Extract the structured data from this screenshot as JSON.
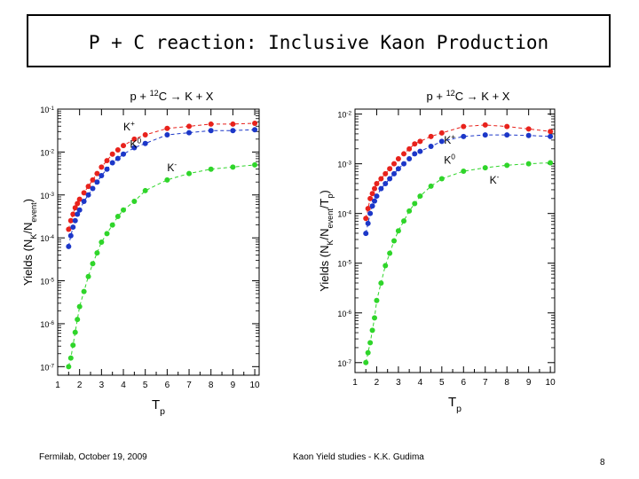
{
  "slide": {
    "title": "P + C reaction: Inclusive Kaon Production",
    "footer_left": "Fermilab, October 19, 2009",
    "footer_center": "Kaon Yield studies - K.K. Gudima",
    "page_number": "8"
  },
  "colors": {
    "kplus": "#e8221c",
    "kzero": "#1c37c8",
    "kminus": "#2fd52a",
    "axis": "#000000"
  },
  "chart_data": [
    {
      "type": "line",
      "title_parts": {
        "lead": "p + ",
        "iso": "12",
        "rest": "C → K + X"
      },
      "xlabel": {
        "main": "T",
        "sub": "p"
      },
      "ylabel": {
        "main": "Yields (N",
        "sub1": "K",
        "mid": "/N",
        "sub2": "event",
        "end": ")"
      },
      "xlim": [
        1,
        10.2
      ],
      "ylim_exp": [
        -7.2,
        -1
      ],
      "log_y": true,
      "x_ticks": [
        "1",
        "2",
        "3",
        "4",
        "5",
        "6",
        "7",
        "8",
        "9",
        "10"
      ],
      "y_ticks": [
        {
          "base": "10",
          "exp": "-1"
        },
        {
          "base": "10",
          "exp": "-2"
        },
        {
          "base": "10",
          "exp": "-3"
        },
        {
          "base": "10",
          "exp": "-4"
        },
        {
          "base": "10",
          "exp": "-5"
        },
        {
          "base": "10",
          "exp": "-6"
        },
        {
          "base": "10",
          "exp": "-7"
        }
      ],
      "series": [
        {
          "name": "K+",
          "label": {
            "main": "K",
            "sup": "+"
          },
          "color": "kplus",
          "x": [
            1.5,
            1.6,
            1.7,
            1.8,
            1.9,
            2.0,
            2.2,
            2.4,
            2.6,
            2.8,
            3.0,
            3.25,
            3.5,
            3.75,
            4.0,
            4.5,
            5.0,
            6.0,
            7.0,
            8.0,
            9.0,
            10.0
          ],
          "y": [
            -3.8,
            -3.6,
            -3.45,
            -3.3,
            -3.2,
            -3.1,
            -2.95,
            -2.8,
            -2.65,
            -2.5,
            -2.35,
            -2.2,
            -2.05,
            -1.95,
            -1.85,
            -1.7,
            -1.6,
            -1.45,
            -1.4,
            -1.35,
            -1.35,
            -1.33
          ]
        },
        {
          "name": "K0",
          "label": {
            "main": "K",
            "sup": "0"
          },
          "color": "kzero",
          "x": [
            1.5,
            1.6,
            1.7,
            1.8,
            1.9,
            2.0,
            2.2,
            2.4,
            2.6,
            2.8,
            3.0,
            3.25,
            3.5,
            3.75,
            4.0,
            4.5,
            5.0,
            6.0,
            7.0,
            8.0,
            9.0,
            10.0
          ],
          "y": [
            -4.2,
            -3.95,
            -3.75,
            -3.6,
            -3.45,
            -3.35,
            -3.15,
            -3.0,
            -2.85,
            -2.7,
            -2.55,
            -2.4,
            -2.25,
            -2.15,
            -2.05,
            -1.9,
            -1.8,
            -1.6,
            -1.55,
            -1.5,
            -1.5,
            -1.48
          ]
        },
        {
          "name": "K-",
          "label": {
            "main": "K",
            "sup": "-"
          },
          "color": "kminus",
          "x": [
            1.5,
            1.6,
            1.7,
            1.8,
            1.9,
            2.0,
            2.2,
            2.4,
            2.6,
            2.8,
            3.0,
            3.25,
            3.5,
            3.75,
            4.0,
            4.5,
            5.0,
            6.0,
            7.0,
            8.0,
            9.0,
            10.0
          ],
          "y": [
            -7.0,
            -6.8,
            -6.5,
            -6.2,
            -5.9,
            -5.6,
            -5.25,
            -4.9,
            -4.6,
            -4.35,
            -4.1,
            -3.9,
            -3.7,
            -3.5,
            -3.35,
            -3.15,
            -2.9,
            -2.65,
            -2.5,
            -2.4,
            -2.35,
            -2.3
          ]
        }
      ]
    },
    {
      "type": "line",
      "title_parts": {
        "lead": "p + ",
        "iso": "12",
        "rest": "C → K + X"
      },
      "xlabel": {
        "main": "T",
        "sub": "p"
      },
      "ylabel": {
        "main": "Yields (N",
        "sub1": "K",
        "mid": "/N",
        "sub2": "event",
        "end": "/T",
        "sub3": "p",
        "end2": ")"
      },
      "xlim": [
        1,
        10.2
      ],
      "ylim_exp": [
        -7.2,
        -1.9
      ],
      "log_y": true,
      "x_ticks": [
        "1",
        "2",
        "3",
        "4",
        "5",
        "6",
        "7",
        "8",
        "9",
        "10"
      ],
      "y_ticks": [
        {
          "base": "10",
          "exp": "-2"
        },
        {
          "base": "10",
          "exp": "-3"
        },
        {
          "base": "10",
          "exp": "-4"
        },
        {
          "base": "10",
          "exp": "-5"
        },
        {
          "base": "10",
          "exp": "-6"
        },
        {
          "base": "10",
          "exp": "-7"
        }
      ],
      "series": [
        {
          "name": "K+",
          "label": {
            "main": "K",
            "sup": "+"
          },
          "color": "kplus",
          "x": [
            1.5,
            1.6,
            1.7,
            1.8,
            1.9,
            2.0,
            2.2,
            2.4,
            2.6,
            2.8,
            3.0,
            3.25,
            3.5,
            3.75,
            4.0,
            4.5,
            5.0,
            6.0,
            7.0,
            8.0,
            9.0,
            10.0
          ],
          "y": [
            -4.1,
            -3.9,
            -3.7,
            -3.6,
            -3.5,
            -3.4,
            -3.3,
            -3.2,
            -3.1,
            -3.0,
            -2.9,
            -2.8,
            -2.7,
            -2.6,
            -2.55,
            -2.45,
            -2.38,
            -2.25,
            -2.22,
            -2.25,
            -2.3,
            -2.35
          ]
        },
        {
          "name": "K0",
          "label": {
            "main": "K",
            "sup": "0"
          },
          "color": "kzero",
          "x": [
            1.5,
            1.6,
            1.7,
            1.8,
            1.9,
            2.0,
            2.2,
            2.4,
            2.6,
            2.8,
            3.0,
            3.25,
            3.5,
            3.75,
            4.0,
            4.5,
            5.0,
            6.0,
            7.0,
            8.0,
            9.0,
            10.0
          ],
          "y": [
            -4.4,
            -4.2,
            -4.0,
            -3.85,
            -3.75,
            -3.65,
            -3.5,
            -3.4,
            -3.3,
            -3.2,
            -3.1,
            -3.0,
            -2.9,
            -2.8,
            -2.75,
            -2.65,
            -2.55,
            -2.45,
            -2.42,
            -2.42,
            -2.43,
            -2.45
          ]
        },
        {
          "name": "K-",
          "label": {
            "main": "K",
            "sup": "-"
          },
          "color": "kminus",
          "x": [
            1.5,
            1.6,
            1.7,
            1.8,
            1.9,
            2.0,
            2.2,
            2.4,
            2.6,
            2.8,
            3.0,
            3.25,
            3.5,
            3.75,
            4.0,
            4.5,
            5.0,
            6.0,
            7.0,
            8.0,
            9.0,
            10.0
          ],
          "y": [
            -7.0,
            -6.8,
            -6.6,
            -6.35,
            -6.1,
            -5.75,
            -5.4,
            -5.05,
            -4.8,
            -4.55,
            -4.35,
            -4.15,
            -3.95,
            -3.8,
            -3.65,
            -3.45,
            -3.3,
            -3.15,
            -3.08,
            -3.03,
            -3.0,
            -2.98
          ]
        }
      ]
    }
  ]
}
